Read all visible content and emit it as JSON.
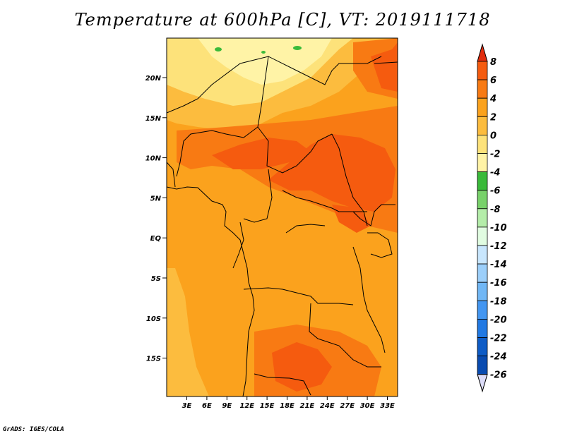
{
  "title": "Temperature at 600hPa [C], VT: 2019111718",
  "footer": "GrADS: IGES/COLA",
  "lat_labels": [
    "20N",
    "15N",
    "10N",
    "5N",
    "EQ",
    "5S",
    "10S",
    "15S"
  ],
  "lon_labels": [
    "3E",
    "6E",
    "9E",
    "12E",
    "15E",
    "18E",
    "21E",
    "24E",
    "27E",
    "30E",
    "33E"
  ],
  "colorbar_labels": [
    "8",
    "6",
    "4",
    "2",
    "0",
    "-2",
    "-4",
    "-6",
    "-8",
    "-10",
    "-12",
    "-14",
    "-16",
    "-18",
    "-20",
    "-22",
    "-24",
    "-26"
  ],
  "colorbar_colors": [
    "#e12d0e",
    "#f55b0f",
    "#f87a13",
    "#fba21d",
    "#fcbc3e",
    "#fde27a",
    "#fff3a6",
    "#3aba3a",
    "#78d16a",
    "#b4eda9",
    "#e1fce1",
    "#c8e6fd",
    "#9ccffa",
    "#71b7f5",
    "#4396f1",
    "#2179e3",
    "#0e5cc6",
    "#094bb0",
    "#0a3190",
    "#00106a",
    "#dcdcf8"
  ],
  "map_colors": {
    "base": "#fba21d",
    "warm": "#f87a13",
    "hot": "#f55b0f",
    "mild": "#fcbc3e",
    "cool": "#fde27a",
    "coolest": "#fff3a6",
    "green": "#3aba3a"
  }
}
